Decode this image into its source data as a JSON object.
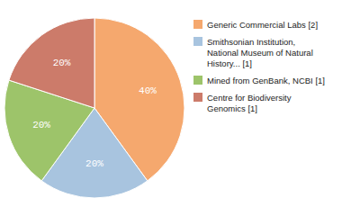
{
  "chart_data": {
    "type": "pie",
    "categories": [
      "Generic Commercial Labs [2]",
      "Smithsonian Institution,\nNational Museum of Natural\nHistory... [1]",
      "Mined from GenBank, NCBI [1]",
      "Centre for Biodiversity\nGenomics [1]"
    ],
    "values": [
      40,
      20,
      20,
      20
    ],
    "value_labels": [
      "40%",
      "20%",
      "20%",
      "20%"
    ],
    "colors": [
      "#F5A86E",
      "#A8C4DF",
      "#9DC46A",
      "#CC7B6A"
    ],
    "data_labels": true,
    "legend": "right"
  }
}
